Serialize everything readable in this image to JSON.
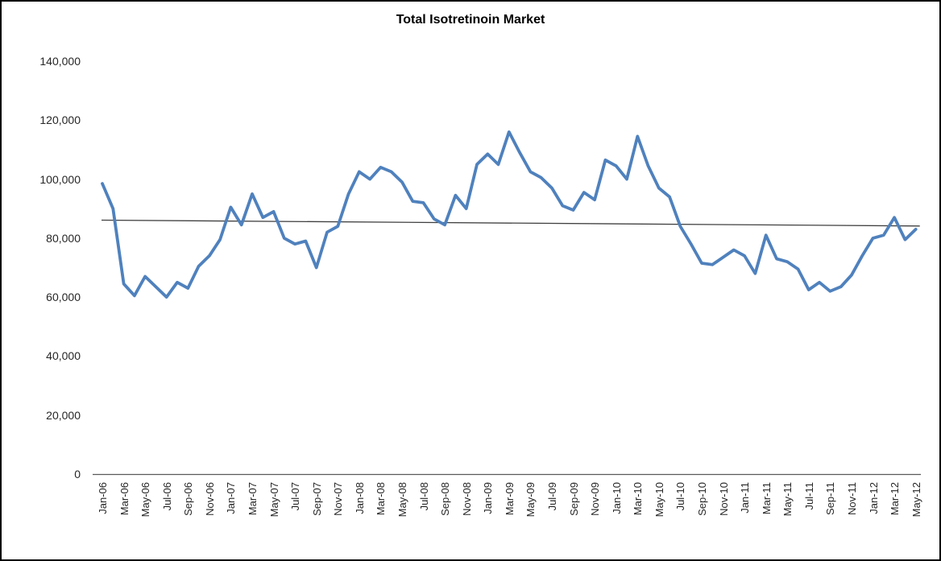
{
  "window": {
    "background": "#ffffff",
    "border_color": "#000000"
  },
  "chart_data": {
    "type": "line",
    "title": "Total Isotretinoin Market",
    "legend": "none",
    "grid": false,
    "categories": [
      "Jan-06",
      "Feb-06",
      "Mar-06",
      "Apr-06",
      "May-06",
      "Jun-06",
      "Jul-06",
      "Aug-06",
      "Sep-06",
      "Oct-06",
      "Nov-06",
      "Dec-06",
      "Jan-07",
      "Feb-07",
      "Mar-07",
      "Apr-07",
      "May-07",
      "Jun-07",
      "Jul-07",
      "Aug-07",
      "Sep-07",
      "Oct-07",
      "Nov-07",
      "Dec-07",
      "Jan-08",
      "Feb-08",
      "Mar-08",
      "Apr-08",
      "May-08",
      "Jun-08",
      "Jul-08",
      "Aug-08",
      "Sep-08",
      "Oct-08",
      "Nov-08",
      "Dec-08",
      "Jan-09",
      "Feb-09",
      "Mar-09",
      "Apr-09",
      "May-09",
      "Jun-09",
      "Jul-09",
      "Aug-09",
      "Sep-09",
      "Oct-09",
      "Nov-09",
      "Dec-09",
      "Jan-10",
      "Feb-10",
      "Mar-10",
      "Apr-10",
      "May-10",
      "Jun-10",
      "Jul-10",
      "Aug-10",
      "Sep-10",
      "Oct-10",
      "Nov-10",
      "Dec-10",
      "Jan-11",
      "Feb-11",
      "Mar-11",
      "Apr-11",
      "May-11",
      "Jun-11",
      "Jul-11",
      "Aug-11",
      "Sep-11",
      "Oct-11",
      "Nov-11",
      "Dec-11",
      "Jan-12",
      "Feb-12",
      "Mar-12",
      "Apr-12",
      "May-12"
    ],
    "series": [
      {
        "name": "Total Isotretinoin Market",
        "color": "#4F81BD",
        "values": [
          98500,
          90000,
          64500,
          60500,
          67000,
          63500,
          60000,
          65000,
          63000,
          70500,
          74000,
          79500,
          90500,
          84500,
          95000,
          87000,
          89000,
          80000,
          78000,
          79000,
          70000,
          82000,
          84000,
          95000,
          102500,
          100000,
          104000,
          102500,
          99000,
          92500,
          92000,
          86500,
          84500,
          94500,
          90000,
          105000,
          108500,
          105000,
          116000,
          109000,
          102500,
          100500,
          97000,
          91000,
          89500,
          95500,
          93000,
          106500,
          104500,
          100000,
          114500,
          104500,
          97000,
          94000,
          84000,
          78000,
          71500,
          71000,
          73500,
          76000,
          74000,
          68000,
          81000,
          73000,
          72000,
          69500,
          62500,
          65000,
          62000,
          63500,
          67500,
          74000,
          80000,
          81000,
          87000,
          79500,
          83000
        ]
      }
    ],
    "trendline": {
      "color": "#404040",
      "start_value": 86100,
      "end_value": 84100
    },
    "y_axis": {
      "min": 0,
      "max": 140000,
      "step": 20000,
      "tick_labels": [
        "0",
        "20,000",
        "40,000",
        "60,000",
        "80,000",
        "100,000",
        "120,000",
        "140,000"
      ]
    },
    "x_axis": {
      "tick_every": 2
    }
  }
}
